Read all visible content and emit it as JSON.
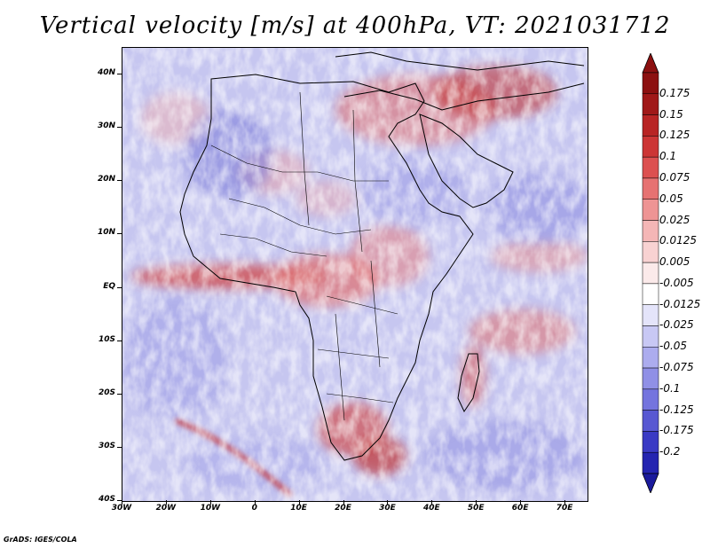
{
  "title": "Vertical velocity [m/s] at 400hPa, VT: 2021031712",
  "footer": "GrADS: IGES/COLA",
  "map": {
    "lon_range": [
      -30,
      75
    ],
    "lat_range": [
      -40,
      45
    ],
    "lat_labels": [
      {
        "lat": 40,
        "text": "40N"
      },
      {
        "lat": 30,
        "text": "30N"
      },
      {
        "lat": 20,
        "text": "20N"
      },
      {
        "lat": 10,
        "text": "10N"
      },
      {
        "lat": 0,
        "text": "EQ"
      },
      {
        "lat": -10,
        "text": "10S"
      },
      {
        "lat": -20,
        "text": "20S"
      },
      {
        "lat": -30,
        "text": "30S"
      },
      {
        "lat": -40,
        "text": "40S"
      }
    ],
    "lon_labels": [
      {
        "lon": -30,
        "text": "30W"
      },
      {
        "lon": -20,
        "text": "20W"
      },
      {
        "lon": -10,
        "text": "10W"
      },
      {
        "lon": 0,
        "text": "0"
      },
      {
        "lon": 10,
        "text": "10E"
      },
      {
        "lon": 20,
        "text": "20E"
      },
      {
        "lon": 30,
        "text": "30E"
      },
      {
        "lon": 40,
        "text": "40E"
      },
      {
        "lon": 50,
        "text": "50E"
      },
      {
        "lon": 60,
        "text": "60E"
      },
      {
        "lon": 70,
        "text": "70E"
      }
    ]
  },
  "colorbar": {
    "levels": [
      {
        "label": "0.175",
        "color": "#a01818"
      },
      {
        "label": "0.15",
        "color": "#b82424"
      },
      {
        "label": "0.125",
        "color": "#cc3535"
      },
      {
        "label": "0.1",
        "color": "#dc5050"
      },
      {
        "label": "0.075",
        "color": "#e67272"
      },
      {
        "label": "0.05",
        "color": "#ee9494"
      },
      {
        "label": "0.025",
        "color": "#f4b6b6"
      },
      {
        "label": "0.0125",
        "color": "#f8d2d2"
      },
      {
        "label": "0.005",
        "color": "#fbeaea"
      },
      {
        "label": "-0.005",
        "color": "#ffffff"
      },
      {
        "label": "-0.0125",
        "color": "#e4e4fa"
      },
      {
        "label": "-0.025",
        "color": "#c8c8f4"
      },
      {
        "label": "-0.05",
        "color": "#acacee"
      },
      {
        "label": "-0.075",
        "color": "#9090e6"
      },
      {
        "label": "-0.1",
        "color": "#7474de"
      },
      {
        "label": "-0.125",
        "color": "#5858d2"
      },
      {
        "label": "-0.175",
        "color": "#3a3ac4"
      },
      {
        "label": "-0.2",
        "color": "#2424b0"
      }
    ],
    "top_color": "#8c1010",
    "bottom_color": "#1a1a9c"
  }
}
